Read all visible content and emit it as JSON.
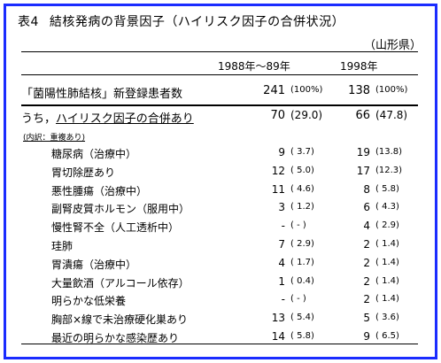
{
  "title": {
    "number": "表4",
    "text": "結核発病の背景因子（ハイリスク因子の合併状況）"
  },
  "region": "（山形県）",
  "columns": {
    "col1": "1988年～89年",
    "col2": "1998年"
  },
  "total_row": {
    "label": "「菌陽性肺結核」新登録患者数",
    "v1": "241",
    "p1": "(100%)",
    "v2": "138",
    "p2": "(100%)"
  },
  "highrisk_row": {
    "label_prefix": "うち，",
    "label_link": "ハイリスク因子の合併あり",
    "v1": "70",
    "p1": "(29.0)",
    "v2": "66",
    "p2": "(47.8)"
  },
  "note": "(内訳：重複あり)",
  "items": [
    {
      "label": "糖尿病（治療中）",
      "v1": "9",
      "p1": "( 3.7)",
      "v2": "19",
      "p2": "(13.8)"
    },
    {
      "label": "胃切除歴あり",
      "v1": "12",
      "p1": "( 5.0)",
      "v2": "17",
      "p2": "(12.3)"
    },
    {
      "label": "悪性腫瘍（治療中）",
      "v1": "11",
      "p1": "( 4.6)",
      "v2": "8",
      "p2": "( 5.8)"
    },
    {
      "label": "副腎皮質ホルモン（服用中）",
      "v1": "3",
      "p1": "( 1.2)",
      "v2": "6",
      "p2": "( 4.3)"
    },
    {
      "label": "慢性腎不全（人工透析中）",
      "v1": "-",
      "p1": "( - )",
      "v2": "4",
      "p2": "( 2.9)"
    },
    {
      "label": "珪肺",
      "v1": "7",
      "p1": "( 2.9)",
      "v2": "2",
      "p2": "( 1.4)"
    },
    {
      "label": "胃潰瘍（治療中）",
      "v1": "4",
      "p1": "( 1.7)",
      "v2": "2",
      "p2": "( 1.4)"
    },
    {
      "label": "大量飲酒（アルコール依存）",
      "v1": "1",
      "p1": "( 0.4)",
      "v2": "2",
      "p2": "( 1.4)"
    },
    {
      "label": "明らかな低栄養",
      "v1": "-",
      "p1": "( - )",
      "v2": "2",
      "p2": "( 1.4)"
    },
    {
      "label": "胸部×線で未治療硬化巣あり",
      "v1": "13",
      "p1": "( 5.4)",
      "v2": "5",
      "p2": "( 3.6)"
    },
    {
      "label": "最近の明らかな感染歴あり",
      "v1": "14",
      "p1": "( 5.8)",
      "v2": "9",
      "p2": "( 6.5)"
    }
  ],
  "colors": {
    "frame": "#1a2cff",
    "shadow": "#3a3fd8"
  }
}
